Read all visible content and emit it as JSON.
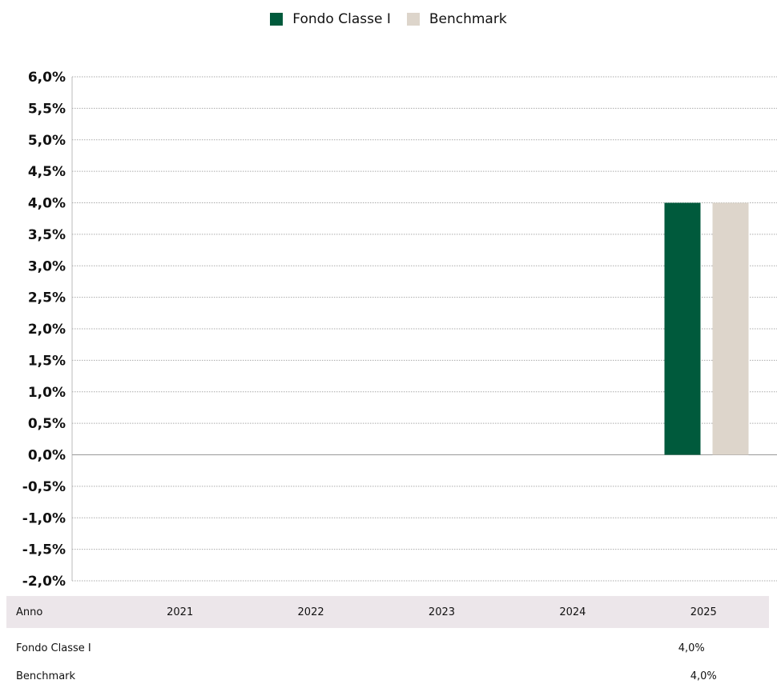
{
  "legend": [
    {
      "name": "Fondo Classe I",
      "color": "#005a3c"
    },
    {
      "name": "Benchmark",
      "color": "#ddd5cb"
    }
  ],
  "chart_data": {
    "type": "bar",
    "categories": [
      "2021",
      "2022",
      "2023",
      "2024",
      "2025"
    ],
    "series": [
      {
        "name": "Fondo Classe I",
        "values": [
          null,
          null,
          null,
          null,
          4.0
        ],
        "color": "#005a3c"
      },
      {
        "name": "Benchmark",
        "values": [
          null,
          null,
          null,
          null,
          4.0
        ],
        "color": "#ddd5cb"
      }
    ],
    "ylim": [
      -2.0,
      6.0
    ],
    "yticks": [
      "6,0%",
      "5,5%",
      "5,0%",
      "4,5%",
      "4,0%",
      "3,5%",
      "3,0%",
      "2,5%",
      "2,0%",
      "1,5%",
      "1,0%",
      "0,5%",
      "0,0%",
      "-0,5%",
      "-1,0%",
      "-1,5%",
      "-2,0%"
    ],
    "grid": true,
    "legend_position": "top-center"
  },
  "table": {
    "header_label": "Anno",
    "years": [
      "2021",
      "2022",
      "2023",
      "2024",
      "2025"
    ],
    "rows": [
      {
        "label": "Fondo Classe I",
        "values": [
          "",
          "",
          "",
          "",
          "4,0%"
        ]
      },
      {
        "label": "Benchmark",
        "values": [
          "",
          "",
          "",
          "",
          "4,0%"
        ]
      }
    ]
  }
}
